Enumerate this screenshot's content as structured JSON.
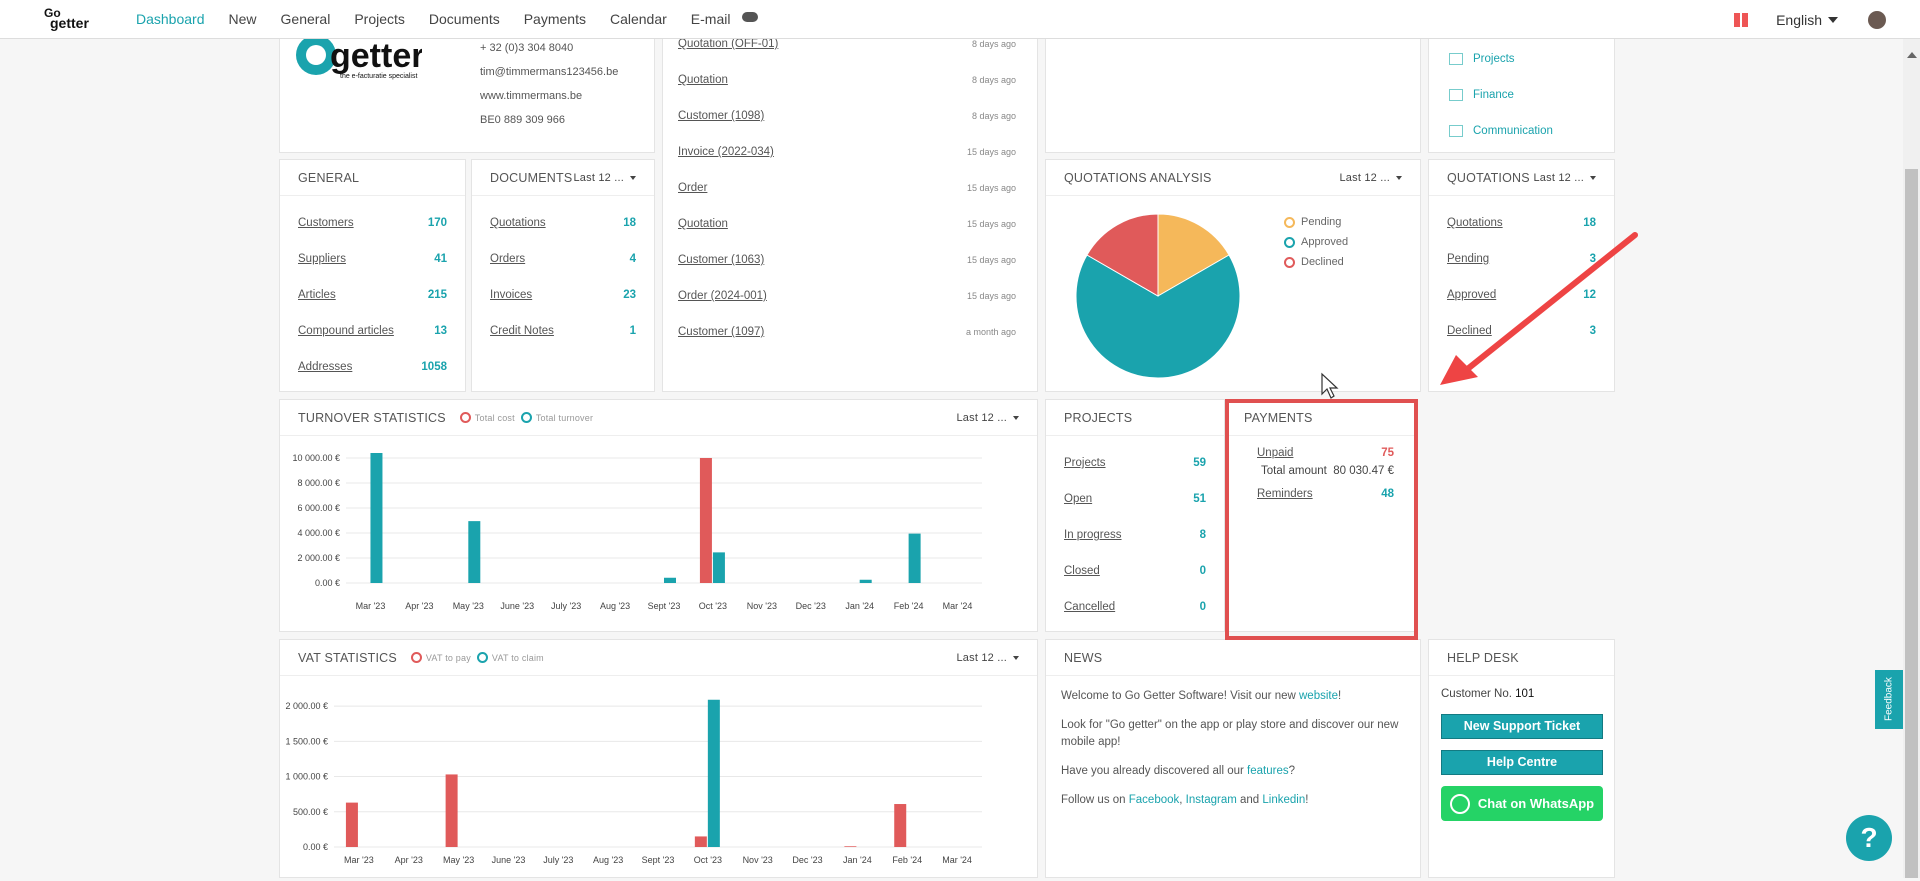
{
  "nav": {
    "logo_top": "Go",
    "logo_bottom": "getter",
    "items": [
      "Dashboard",
      "New",
      "General",
      "Projects",
      "Documents",
      "Payments",
      "Calendar",
      "E-mail"
    ],
    "language": "English"
  },
  "company": {
    "logo_text": "getter",
    "logo_tagline": "the e-facturatie specialist",
    "phone": "+ 32 (0)3 304 8040",
    "email": "tim@timmermans123456.be",
    "website": "www.timmermans.be",
    "vat": "BE0 889 309 966"
  },
  "quick_links": [
    "Projects",
    "Finance",
    "Communication"
  ],
  "general": {
    "title": "GENERAL",
    "rows": [
      {
        "label": "Customers",
        "value": "170"
      },
      {
        "label": "Suppliers",
        "value": "41"
      },
      {
        "label": "Articles",
        "value": "215"
      },
      {
        "label": "Compound articles",
        "value": "13"
      },
      {
        "label": "Addresses",
        "value": "1058"
      }
    ]
  },
  "documents": {
    "title": "DOCUMENTS",
    "period": "Last 12 ...",
    "rows": [
      {
        "label": "Quotations",
        "value": "18"
      },
      {
        "label": "Orders",
        "value": "4"
      },
      {
        "label": "Invoices",
        "value": "23"
      },
      {
        "label": "Credit Notes",
        "value": "1"
      }
    ]
  },
  "activity": [
    {
      "label": "Quotation (OFF-01)",
      "time": "8 days ago"
    },
    {
      "label": "Quotation",
      "time": "8 days ago"
    },
    {
      "label": "Customer (1098)",
      "time": "8 days ago"
    },
    {
      "label": "Invoice (2022-034)",
      "time": "15 days ago"
    },
    {
      "label": "Order",
      "time": "15 days ago"
    },
    {
      "label": "Quotation",
      "time": "15 days ago"
    },
    {
      "label": "Customer (1063)",
      "time": "15 days ago"
    },
    {
      "label": "Order (2024-001)",
      "time": "15 days ago"
    },
    {
      "label": "Customer (1097)",
      "time": "a month ago"
    }
  ],
  "quotations_analysis": {
    "title": "QUOTATIONS ANALYSIS",
    "period": "Last 12 ...",
    "legend": [
      "Pending",
      "Approved",
      "Declined"
    ]
  },
  "quotations": {
    "title": "QUOTATIONS",
    "period": "Last 12 ...",
    "rows": [
      {
        "label": "Quotations",
        "value": "18"
      },
      {
        "label": "Pending",
        "value": "3"
      },
      {
        "label": "Approved",
        "value": "12"
      },
      {
        "label": "Declined",
        "value": "3"
      }
    ]
  },
  "turnover": {
    "title": "TURNOVER STATISTICS",
    "period": "Last 12 ...",
    "legend": [
      "Total cost",
      "Total turnover"
    ]
  },
  "projects": {
    "title": "PROJECTS",
    "rows": [
      {
        "label": "Projects",
        "value": "59"
      },
      {
        "label": "Open",
        "value": "51"
      },
      {
        "label": "In progress",
        "value": "8"
      },
      {
        "label": "Closed",
        "value": "0"
      },
      {
        "label": "Cancelled",
        "value": "0"
      }
    ]
  },
  "payments": {
    "title": "PAYMENTS",
    "unpaid_label": "Unpaid",
    "unpaid_value": "75",
    "total_label": "Total amount",
    "total_value": "80 030.47 €",
    "reminders_label": "Reminders",
    "reminders_value": "48"
  },
  "vat": {
    "title": "VAT STATISTICS",
    "period": "Last 12 ...",
    "legend": [
      "VAT to pay",
      "VAT to claim"
    ]
  },
  "news": {
    "title": "NEWS",
    "p1": "Welcome to Go Getter Software! Visit our new",
    "p1_link": "website",
    "p2": "Look for \"Go getter\" on the app or play store and discover our new mobile app!",
    "p3": "Have you already discovered all our",
    "p3_link": "features",
    "p4": "Follow us on",
    "links": [
      "Facebook",
      "Instagram",
      "Linkedin"
    ],
    "and": "and"
  },
  "helpdesk": {
    "title": "HELP DESK",
    "customer_label": "Customer No.",
    "customer_no": "101",
    "btn1": "New Support Ticket",
    "btn2": "Help Centre",
    "btn3": "Chat on WhatsApp"
  },
  "feedback": "Feedback",
  "help": "?",
  "colors": {
    "accent": "#1aa3ad",
    "cost": "#e05a5a",
    "pending": "#f5b85a",
    "highlight": "#e05050"
  },
  "chart_data": [
    {
      "type": "pie",
      "title": "QUOTATIONS ANALYSIS",
      "categories": [
        "Pending",
        "Approved",
        "Declined"
      ],
      "values": [
        3,
        12,
        3
      ],
      "colors": [
        "#f5b85a",
        "#1aa3ad",
        "#e05a5a"
      ]
    },
    {
      "type": "bar",
      "title": "TURNOVER STATISTICS",
      "categories": [
        "Mar '23",
        "Apr '23",
        "May '23",
        "June '23",
        "July '23",
        "Aug '23",
        "Sept '23",
        "Oct '23",
        "Nov '23",
        "Dec '23",
        "Jan '24",
        "Feb '24",
        "Mar '24"
      ],
      "series": [
        {
          "name": "Total cost",
          "values": [
            0,
            0,
            0,
            0,
            0,
            0,
            0,
            10000,
            0,
            0,
            0,
            0,
            0
          ],
          "color": "#e05a5a"
        },
        {
          "name": "Total turnover",
          "values": [
            10400,
            0,
            4950,
            0,
            0,
            0,
            420,
            2450,
            0,
            0,
            260,
            3950,
            0
          ],
          "color": "#1aa3ad"
        }
      ],
      "yticks": [
        "0.00 €",
        "2 000.00 €",
        "4 000.00 €",
        "6 000.00 €",
        "8 000.00 €",
        "10 000.00 €"
      ],
      "ylim": [
        0,
        10800
      ]
    },
    {
      "type": "bar",
      "title": "VAT STATISTICS",
      "categories": [
        "Mar '23",
        "Apr '23",
        "May '23",
        "June '23",
        "July '23",
        "Aug '23",
        "Sept '23",
        "Oct '23",
        "Nov '23",
        "Dec '23",
        "Jan '24",
        "Feb '24",
        "Mar '24"
      ],
      "series": [
        {
          "name": "VAT to pay",
          "values": [
            630,
            0,
            1030,
            0,
            0,
            0,
            0,
            150,
            0,
            0,
            10,
            610,
            0
          ],
          "color": "#e05a5a"
        },
        {
          "name": "VAT to claim",
          "values": [
            0,
            0,
            0,
            0,
            0,
            0,
            0,
            2090,
            0,
            0,
            0,
            0,
            0
          ],
          "color": "#1aa3ad"
        }
      ],
      "yticks": [
        "0.00 €",
        "500.00 €",
        "1 000.00 €",
        "1 500.00 €",
        "2 000.00 €"
      ],
      "ylim": [
        0,
        2200
      ]
    }
  ]
}
